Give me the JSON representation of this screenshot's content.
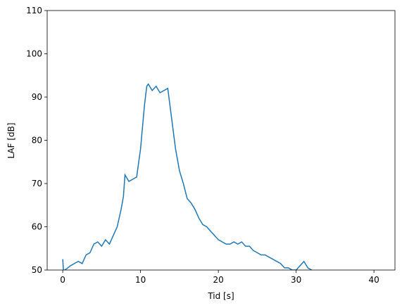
{
  "chart_data": {
    "type": "line",
    "x_label": "Tid [s]",
    "y_label": "LAF [dB]",
    "x": [
      0,
      0.1,
      0.5,
      1,
      1.5,
      2,
      2.5,
      3,
      3.5,
      4,
      4.5,
      5,
      5.5,
      6,
      6.5,
      7,
      7.5,
      7.8,
      8,
      8.5,
      9,
      9.5,
      10,
      10.5,
      10.8,
      11,
      11.5,
      12,
      12.5,
      13,
      13.5,
      14,
      14.5,
      15,
      15.5,
      16,
      16.5,
      17,
      17.5,
      18,
      18.5,
      19,
      19.5,
      20,
      20.5,
      21,
      21.5,
      22,
      22.5,
      23,
      23.5,
      24,
      24.5,
      25,
      25.5,
      26,
      26.5,
      27,
      27.5,
      28,
      28.5,
      29,
      29.5,
      30,
      30.5,
      31,
      31.5,
      32
    ],
    "values": [
      52.5,
      49.8,
      50.3,
      51,
      51.5,
      52,
      51.5,
      53.5,
      54,
      56,
      56.5,
      55.5,
      57,
      56,
      58,
      60,
      64,
      67,
      72,
      70.5,
      71,
      71.5,
      78,
      88,
      92.5,
      93,
      91.5,
      92.5,
      91,
      91.5,
      92,
      85,
      78,
      73,
      70,
      66.5,
      65.5,
      64,
      62,
      60.5,
      60,
      59,
      58,
      57,
      56.5,
      56,
      56,
      56.5,
      56,
      56.5,
      55.5,
      55.5,
      54.5,
      54,
      53.5,
      53.5,
      53,
      52.5,
      52,
      51.5,
      50.5,
      50.5,
      50,
      50,
      51,
      52,
      50.5,
      50
    ],
    "color": "#1f77b4",
    "xlim": [
      -2,
      42.7
    ],
    "ylim": [
      50,
      110
    ],
    "xticks": [
      0,
      10,
      20,
      30,
      40
    ],
    "yticks": [
      50,
      60,
      70,
      80,
      90,
      100,
      110
    ]
  }
}
